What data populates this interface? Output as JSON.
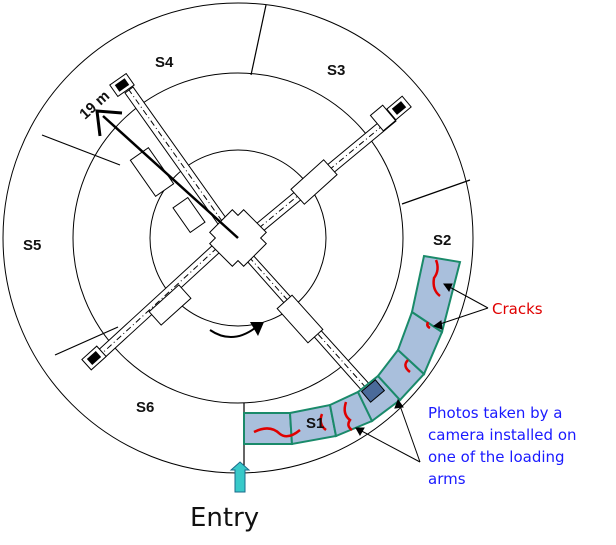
{
  "diagram": {
    "sectors": [
      {
        "id": "s1",
        "label": "S1"
      },
      {
        "id": "s2",
        "label": "S2"
      },
      {
        "id": "s3",
        "label": "S3"
      },
      {
        "id": "s4",
        "label": "S4"
      },
      {
        "id": "s5",
        "label": "S5"
      },
      {
        "id": "s6",
        "label": "S6"
      }
    ],
    "radius_label": "19 m",
    "cracks_label": "Cracks",
    "photos_caption": [
      "Photos taken by a",
      "camera installed on",
      "one of the loading",
      "arms"
    ],
    "entry_label": "Entry",
    "colors": {
      "crack": "#e00000",
      "panel_fill": "#a9bfdc",
      "panel_border": "#1a8a6a",
      "entry_arrow": "#38c9c9",
      "caption_text": "#1a1aff",
      "cracks_text": "#e00000",
      "lines": "#000000"
    }
  }
}
